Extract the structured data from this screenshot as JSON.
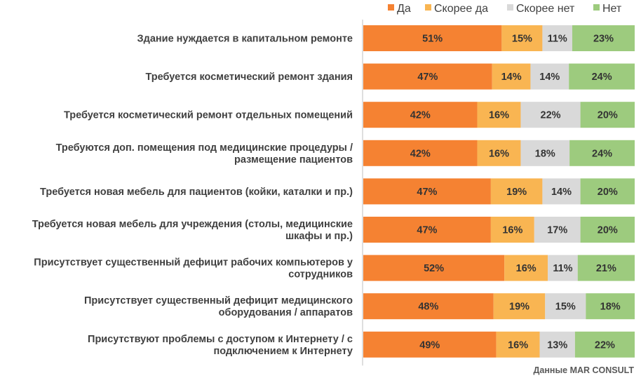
{
  "chart_data": {
    "type": "bar",
    "orientation": "horizontal",
    "stacked": "percent",
    "legend_position": "top-right",
    "categories": [
      [
        "Здание нуждается в капитальном ремонте"
      ],
      [
        "Требуется косметический ремонт здания"
      ],
      [
        "Требуется косметический ремонт отдельных помещений"
      ],
      [
        "Требуются доп. помещения под медицинские процедуры /",
        "размещение пациентов"
      ],
      [
        "Требуется новая мебель для пациентов (койки, каталки и пр.)"
      ],
      [
        "Требуется новая мебель для учреждения (столы, медицинские",
        "шкафы и пр.)"
      ],
      [
        "Присутствует существенный дефицит рабочих компьютеров у",
        "сотрудников"
      ],
      [
        "Присутствует существенный дефицит медицинского",
        "оборудования / аппаратов"
      ],
      [
        "Присутствуют проблемы с доступом к Интернету / с",
        "подключением к Интернету"
      ]
    ],
    "series": [
      {
        "name": "Да",
        "color": "#F58232",
        "values": [
          51,
          47,
          42,
          42,
          47,
          47,
          52,
          48,
          49
        ],
        "labels": [
          "51%",
          "47%",
          "42%",
          "42%",
          "47%",
          "47%",
          "52%",
          "48%",
          "49%"
        ]
      },
      {
        "name": "Скорее да",
        "color": "#F9B552",
        "values": [
          15,
          14,
          16,
          16,
          19,
          16,
          16,
          19,
          16
        ],
        "labels": [
          "15%",
          "14%",
          "16%",
          "16%",
          "19%",
          "16%",
          "16%",
          "19%",
          "16%"
        ]
      },
      {
        "name": "Скорее нет",
        "color": "#D9D9D9",
        "values": [
          11,
          14,
          22,
          18,
          14,
          17,
          11,
          15,
          13
        ],
        "labels": [
          "11%",
          "14%",
          "22%",
          "18%",
          "14%",
          "17%",
          "11%",
          "15%",
          "13%"
        ]
      },
      {
        "name": "Нет",
        "color": "#9DCB7E",
        "values": [
          23,
          24,
          20,
          24,
          20,
          20,
          21,
          18,
          22
        ],
        "labels": [
          "23%",
          "24%",
          "20%",
          "24%",
          "20%",
          "20%",
          "21%",
          "18%",
          "22%"
        ]
      }
    ]
  },
  "source_note": "Данные MAR CONSULT"
}
